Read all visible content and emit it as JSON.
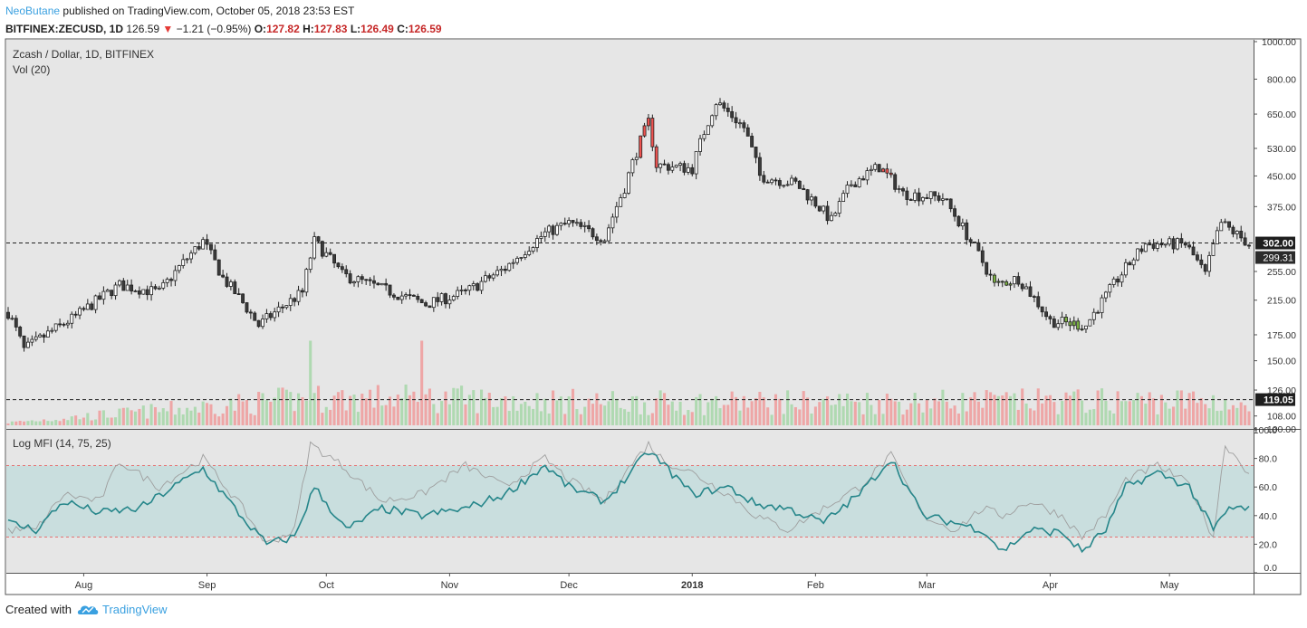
{
  "header": {
    "author": "NeoButane",
    "published_text": "published on TradingView.com, October 05, 2018 23:53 EST",
    "symbol": "BITFINEX:ZECUSD, 1D",
    "last": "126.59",
    "change": "−1.21 (−0.95%)",
    "o_label": "O:",
    "o_value": "127.82",
    "h_label": "H:",
    "h_value": "127.83",
    "l_label": "L:",
    "l_value": "126.49",
    "c_label": "C:",
    "c_value": "126.59"
  },
  "footer": {
    "created_with": "Created with",
    "brand": "TradingView"
  },
  "colors": {
    "up": "#ffffff",
    "down": "#3b3b3b",
    "highlight_red": "#ef5350",
    "highlight_green": "#7cb342",
    "vol_up": "#a5d6a7",
    "vol_down": "#ef9a9a",
    "mfi": "#26868a",
    "mfi_raw": "#9e9e9e",
    "band": "#c9dede"
  },
  "chart_data": [
    {
      "type": "candlestick",
      "title": "Zcash / Dollar, 1D, BITFINEX",
      "subtitle": "Vol (20)",
      "y_scale": "log",
      "ylim": [
        100,
        1000
      ],
      "y_ticks": [
        1000,
        800,
        650,
        530,
        450,
        375,
        255,
        215,
        175,
        150,
        126,
        108,
        100
      ],
      "y_tick_labels": [
        "1000.00",
        "800.00",
        "650.00",
        "530.00",
        "450.00",
        "375.00",
        "255.00",
        "215.00",
        "175.00",
        "150.00",
        "126.00",
        "108.00",
        "100.00"
      ],
      "x_ticks": [
        "Aug",
        "Sep",
        "Oct",
        "Nov",
        "Dec",
        "2018",
        "Feb",
        "Mar",
        "Apr",
        "May"
      ],
      "price_lines": [
        {
          "value": 302.0,
          "label": "302.00"
        },
        {
          "value": 119.05,
          "label": "119.05"
        }
      ],
      "last_price_label": "299.31",
      "date_range": [
        "2017-07-13",
        "2018-05-21"
      ],
      "key_points": [
        [
          "2017-07-13",
          200
        ],
        [
          "2017-07-17",
          160
        ],
        [
          "2017-07-30",
          195
        ],
        [
          "2017-08-10",
          235
        ],
        [
          "2017-08-20",
          225
        ],
        [
          "2017-08-31",
          305
        ],
        [
          "2017-09-05",
          245
        ],
        [
          "2017-09-14",
          185
        ],
        [
          "2017-09-25",
          225
        ],
        [
          "2017-09-28",
          305
        ],
        [
          "2017-10-05",
          250
        ],
        [
          "2017-10-15",
          230
        ],
        [
          "2017-10-26",
          210
        ],
        [
          "2017-11-05",
          225
        ],
        [
          "2017-11-15",
          260
        ],
        [
          "2017-11-25",
          320
        ],
        [
          "2017-12-01",
          340
        ],
        [
          "2017-12-10",
          310
        ],
        [
          "2017-12-15",
          420
        ],
        [
          "2017-12-21",
          620
        ],
        [
          "2017-12-23",
          480
        ],
        [
          "2018-01-01",
          470
        ],
        [
          "2018-01-07",
          700
        ],
        [
          "2018-01-14",
          600
        ],
        [
          "2018-01-18",
          450
        ],
        [
          "2018-01-27",
          430
        ],
        [
          "2018-02-05",
          345
        ],
        [
          "2018-02-10",
          430
        ],
        [
          "2018-02-17",
          475
        ],
        [
          "2018-02-23",
          405
        ],
        [
          "2018-03-05",
          395
        ],
        [
          "2018-03-12",
          305
        ],
        [
          "2018-03-18",
          235
        ],
        [
          "2018-03-24",
          245
        ],
        [
          "2018-04-01",
          190
        ],
        [
          "2018-04-10",
          185
        ],
        [
          "2018-04-15",
          220
        ],
        [
          "2018-04-25",
          300
        ],
        [
          "2018-05-05",
          300
        ],
        [
          "2018-05-10",
          250
        ],
        [
          "2018-05-14",
          340
        ],
        [
          "2018-05-21",
          300
        ]
      ],
      "volume": {
        "scale_max": 1,
        "key_points": [
          [
            "2017-07-13",
            0.06
          ],
          [
            "2017-09-27",
            0.6
          ],
          [
            "2017-10-25",
            0.6
          ],
          [
            "2017-12-18",
            0.5
          ],
          [
            "2018-05-14",
            0.55
          ],
          [
            "2018-05-21",
            0.3
          ]
        ]
      }
    },
    {
      "type": "line",
      "title": "Log MFI (14, 75, 25)",
      "ylim": [
        0,
        100
      ],
      "y_ticks": [
        100,
        80,
        60,
        40,
        20,
        0
      ],
      "y_tick_labels": [
        "100.0",
        "80.0",
        "60.0",
        "40.0",
        "20.0",
        "0.0"
      ],
      "band": [
        25,
        75
      ],
      "series": [
        {
          "key_points": [
            [
              "2017-07-13",
              35
            ],
            [
              "2017-07-20",
              30
            ],
            [
              "2017-07-27",
              50
            ],
            [
              "2017-08-05",
              42
            ],
            [
              "2017-08-15",
              45
            ],
            [
              "2017-08-31",
              73
            ],
            [
              "2017-09-10",
              38
            ],
            [
              "2017-09-16",
              20
            ],
            [
              "2017-09-23",
              25
            ],
            [
              "2017-09-28",
              60
            ],
            [
              "2017-10-06",
              30
            ],
            [
              "2017-10-15",
              45
            ],
            [
              "2017-10-25",
              40
            ],
            [
              "2017-11-05",
              45
            ],
            [
              "2017-11-15",
              55
            ],
            [
              "2017-11-25",
              75
            ],
            [
              "2017-12-01",
              60
            ],
            [
              "2017-12-10",
              50
            ],
            [
              "2017-12-15",
              65
            ],
            [
              "2017-12-21",
              85
            ],
            [
              "2017-12-25",
              75
            ],
            [
              "2018-01-01",
              55
            ],
            [
              "2018-01-10",
              60
            ],
            [
              "2018-01-17",
              48
            ],
            [
              "2018-01-25",
              45
            ],
            [
              "2018-02-03",
              35
            ],
            [
              "2018-02-12",
              55
            ],
            [
              "2018-02-20",
              80
            ],
            [
              "2018-02-28",
              40
            ],
            [
              "2018-03-08",
              35
            ],
            [
              "2018-03-15",
              30
            ],
            [
              "2018-03-20",
              15
            ],
            [
              "2018-03-27",
              30
            ],
            [
              "2018-04-04",
              28
            ],
            [
              "2018-04-09",
              15
            ],
            [
              "2018-04-15",
              30
            ],
            [
              "2018-04-20",
              60
            ],
            [
              "2018-04-28",
              70
            ],
            [
              "2018-05-06",
              60
            ],
            [
              "2018-05-12",
              30
            ],
            [
              "2018-05-16",
              45
            ],
            [
              "2018-05-21",
              45
            ]
          ]
        },
        {
          "key_points": [
            [
              "2017-07-13",
              30
            ],
            [
              "2017-07-20",
              30
            ],
            [
              "2017-07-27",
              55
            ],
            [
              "2017-08-05",
              50
            ],
            [
              "2017-08-10",
              78
            ],
            [
              "2017-08-20",
              60
            ],
            [
              "2017-08-31",
              80
            ],
            [
              "2017-09-10",
              45
            ],
            [
              "2017-09-16",
              20
            ],
            [
              "2017-09-23",
              30
            ],
            [
              "2017-09-27",
              90
            ],
            [
              "2017-10-05",
              75
            ],
            [
              "2017-10-15",
              50
            ],
            [
              "2017-10-25",
              55
            ],
            [
              "2017-11-05",
              75
            ],
            [
              "2017-11-15",
              60
            ],
            [
              "2017-11-25",
              80
            ],
            [
              "2017-12-01",
              65
            ],
            [
              "2017-12-10",
              50
            ],
            [
              "2017-12-15",
              70
            ],
            [
              "2017-12-21",
              90
            ],
            [
              "2017-12-25",
              78
            ],
            [
              "2018-01-01",
              70
            ],
            [
              "2018-01-10",
              55
            ],
            [
              "2018-01-17",
              40
            ],
            [
              "2018-01-25",
              30
            ],
            [
              "2018-02-03",
              45
            ],
            [
              "2018-02-12",
              60
            ],
            [
              "2018-02-20",
              82
            ],
            [
              "2018-02-28",
              40
            ],
            [
              "2018-03-08",
              30
            ],
            [
              "2018-03-15",
              45
            ],
            [
              "2018-03-20",
              40
            ],
            [
              "2018-03-27",
              50
            ],
            [
              "2018-04-04",
              40
            ],
            [
              "2018-04-09",
              25
            ],
            [
              "2018-04-15",
              40
            ],
            [
              "2018-04-20",
              65
            ],
            [
              "2018-04-28",
              75
            ],
            [
              "2018-05-06",
              62
            ],
            [
              "2018-05-12",
              25
            ],
            [
              "2018-05-15",
              90
            ],
            [
              "2018-05-21",
              70
            ]
          ]
        }
      ]
    }
  ]
}
